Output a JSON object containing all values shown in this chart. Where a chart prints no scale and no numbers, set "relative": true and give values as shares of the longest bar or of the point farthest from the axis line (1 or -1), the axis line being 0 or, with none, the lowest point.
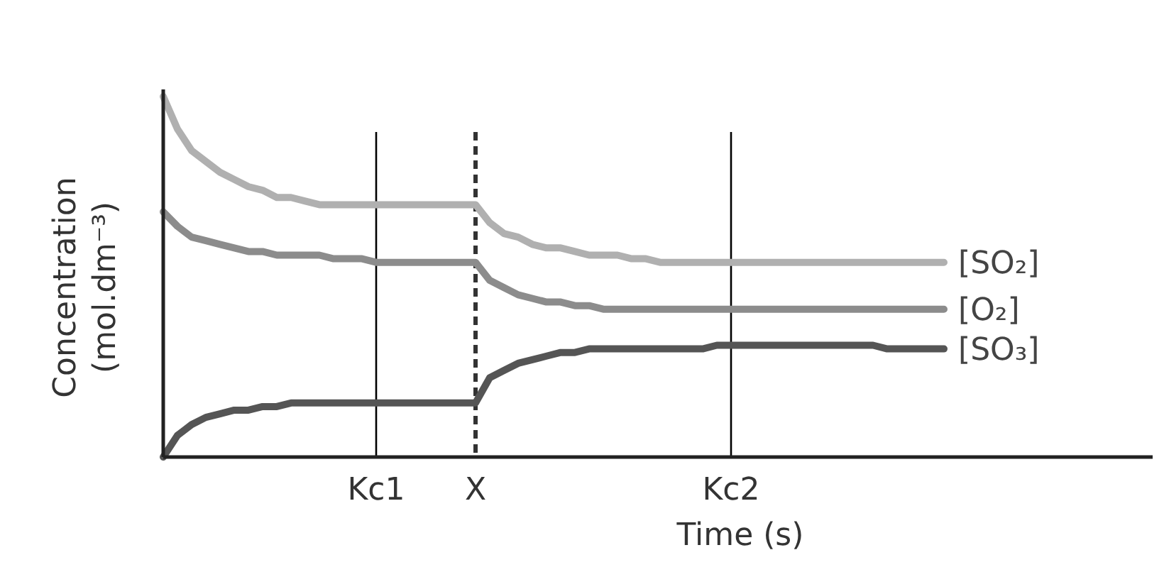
{
  "chart_data": {
    "type": "line",
    "relative": true,
    "xlabel": "Time (s)",
    "ylabel": "Concentration (mol.dm⁻³)",
    "legend": false,
    "grid": false,
    "marker": "none",
    "line_style": "solid",
    "categories": [
      null,
      null,
      null,
      null,
      null,
      null,
      null,
      null,
      null,
      null,
      null,
      null,
      null,
      null,
      null,
      "Kc1",
      null,
      null,
      null,
      null,
      null,
      null,
      "X",
      null,
      null,
      null,
      null,
      null,
      null,
      null,
      null,
      null,
      null,
      null,
      null,
      null,
      null,
      null,
      null,
      null,
      "Kc2",
      null,
      null,
      null,
      null,
      null,
      null,
      null,
      null,
      null,
      null,
      null,
      null,
      null,
      null,
      null,
      null,
      null,
      null,
      null,
      null,
      null,
      null,
      null,
      null,
      null,
      null,
      null,
      null,
      null,
      null
    ],
    "series": [
      {
        "name": "[SO₂]",
        "color": "#b0b0b0",
        "values": [
          1.0,
          0.91,
          0.85,
          0.82,
          0.79,
          0.77,
          0.75,
          0.74,
          0.72,
          0.72,
          0.71,
          0.7,
          0.7,
          0.7,
          0.7,
          0.7,
          0.7,
          0.7,
          0.7,
          0.7,
          0.7,
          0.7,
          0.7,
          0.65,
          0.62,
          0.61,
          0.59,
          0.58,
          0.58,
          0.57,
          0.56,
          0.56,
          0.56,
          0.55,
          0.55,
          0.54,
          0.54,
          0.54,
          0.54,
          0.54,
          0.54,
          0.54,
          0.54,
          0.54,
          0.54,
          0.54,
          0.54,
          0.54,
          0.54,
          0.54,
          0.54,
          0.54,
          0.54,
          0.54,
          0.54,
          0.54,
          null,
          null,
          null,
          null,
          null,
          null,
          null,
          null,
          null,
          null,
          null,
          null,
          null,
          null,
          null
        ]
      },
      {
        "name": "[O₂]",
        "color": "#8c8c8c",
        "values": [
          0.68,
          0.64,
          0.61,
          0.6,
          0.59,
          0.58,
          0.57,
          0.57,
          0.56,
          0.56,
          0.56,
          0.56,
          0.55,
          0.55,
          0.55,
          0.54,
          0.54,
          0.54,
          0.54,
          0.54,
          0.54,
          0.54,
          0.54,
          0.49,
          0.47,
          0.45,
          0.44,
          0.43,
          0.43,
          0.42,
          0.42,
          0.41,
          0.41,
          0.41,
          0.41,
          0.41,
          0.41,
          0.41,
          0.41,
          0.41,
          0.41,
          0.41,
          0.41,
          0.41,
          0.41,
          0.41,
          0.41,
          0.41,
          0.41,
          0.41,
          0.41,
          0.41,
          0.41,
          0.41,
          0.41,
          0.41,
          null,
          null,
          null,
          null,
          null,
          null,
          null,
          null,
          null,
          null,
          null,
          null,
          null,
          null,
          null
        ]
      },
      {
        "name": "[SO₃]",
        "color": "#555555",
        "values": [
          0.0,
          0.06,
          0.09,
          0.11,
          0.12,
          0.13,
          0.13,
          0.14,
          0.14,
          0.15,
          0.15,
          0.15,
          0.15,
          0.15,
          0.15,
          0.15,
          0.15,
          0.15,
          0.15,
          0.15,
          0.15,
          0.15,
          0.15,
          0.22,
          0.24,
          0.26,
          0.27,
          0.28,
          0.29,
          0.29,
          0.3,
          0.3,
          0.3,
          0.3,
          0.3,
          0.3,
          0.3,
          0.3,
          0.3,
          0.31,
          0.31,
          0.31,
          0.31,
          0.31,
          0.31,
          0.31,
          0.31,
          0.31,
          0.31,
          0.31,
          0.31,
          0.3,
          0.3,
          0.3,
          0.3,
          0.3,
          null,
          null,
          null,
          null,
          null,
          null,
          null,
          null,
          null,
          null,
          null,
          null,
          null,
          null,
          null
        ]
      }
    ],
    "ref_lines": [
      {
        "axis": "x",
        "value": "Kc1",
        "color": "#000000",
        "line_style": "solid"
      },
      {
        "axis": "x",
        "value": "X",
        "color": "#333333",
        "line_style": "dashed"
      },
      {
        "axis": "x",
        "value": "Kc2",
        "color": "#000000",
        "line_style": "solid"
      }
    ]
  }
}
